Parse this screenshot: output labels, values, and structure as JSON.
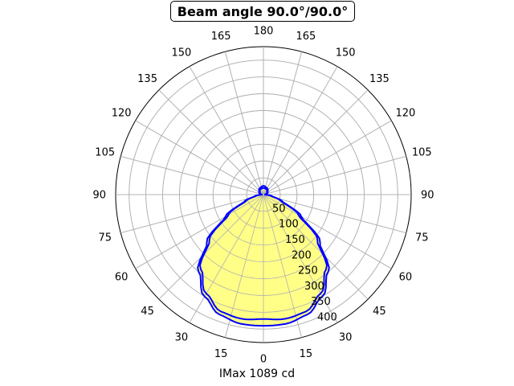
{
  "title": "Beam angle 90.0°/90.0°",
  "footer": "IMax 1089 cd",
  "chart_data": {
    "type": "polar",
    "title": "Beam angle 90.0°/90.0°",
    "xlabel": "IMax 1089 cd",
    "angle_tick_labels": [
      "0",
      "15",
      "30",
      "45",
      "60",
      "75",
      "90",
      "105",
      "120",
      "135",
      "150",
      "165",
      "180",
      "165",
      "150",
      "135",
      "120",
      "105",
      "90",
      "75",
      "60",
      "45",
      "30",
      "15"
    ],
    "radial_tick_labels": [
      "50",
      "100",
      "150",
      "200",
      "250",
      "300",
      "350",
      "400"
    ],
    "radial_ticks": [
      50,
      100,
      150,
      200,
      250,
      300,
      350,
      400
    ],
    "rlim": [
      0,
      440
    ],
    "grid": true,
    "fill_color": "#ffff88",
    "line_color": "#0000ff",
    "series": [
      {
        "values_by_angle": [
          {
            "angle": 0,
            "r": 390
          },
          {
            "angle": 10,
            "r": 390
          },
          {
            "angle": 20,
            "r": 380
          },
          {
            "angle": 30,
            "r": 350
          },
          {
            "angle": 40,
            "r": 300
          },
          {
            "angle": 50,
            "r": 220
          },
          {
            "angle": 60,
            "r": 130
          },
          {
            "angle": 70,
            "r": 60
          },
          {
            "angle": 80,
            "r": 25
          },
          {
            "angle": 90,
            "r": 5
          },
          {
            "angle": 120,
            "r": 15
          },
          {
            "angle": 150,
            "r": 22
          },
          {
            "angle": 180,
            "r": 26
          }
        ]
      },
      {
        "values_by_angle": [
          {
            "angle": 0,
            "r": 370
          },
          {
            "angle": 10,
            "r": 375
          },
          {
            "angle": 20,
            "r": 370
          },
          {
            "angle": 30,
            "r": 340
          },
          {
            "angle": 40,
            "r": 290
          },
          {
            "angle": 50,
            "r": 210
          },
          {
            "angle": 60,
            "r": 120
          },
          {
            "angle": 70,
            "r": 55
          },
          {
            "angle": 80,
            "r": 22
          },
          {
            "angle": 90,
            "r": 5
          },
          {
            "angle": 120,
            "r": 12
          },
          {
            "angle": 150,
            "r": 18
          },
          {
            "angle": 180,
            "r": 20
          }
        ]
      }
    ]
  }
}
